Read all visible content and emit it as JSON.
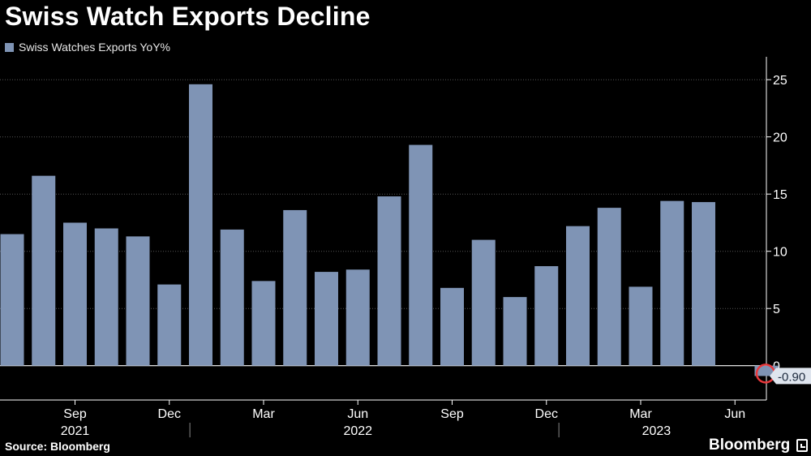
{
  "chart_data": {
    "type": "bar",
    "title": "Swiss Watch Exports Decline",
    "legend": [
      "Swiss Watches Exports YoY%"
    ],
    "categories": [
      "Jul 2021",
      "Aug 2021",
      "Sep 2021",
      "Oct 2021",
      "Nov 2021",
      "Dec 2021",
      "Jan 2022",
      "Feb 2022",
      "Mar 2022",
      "Apr 2022",
      "May 2022",
      "Jun 2022",
      "Jul 2022",
      "Aug 2022",
      "Sep 2022",
      "Oct 2022",
      "Nov 2022",
      "Dec 2022",
      "Jan 2023",
      "Feb 2023",
      "Mar 2023",
      "Apr 2023",
      "May 2023",
      "Jun 2023",
      "Jul 2023"
    ],
    "series": [
      {
        "name": "Swiss Watches Exports YoY%",
        "values": [
          11.5,
          16.6,
          12.5,
          12.0,
          11.3,
          7.1,
          24.6,
          11.9,
          7.4,
          13.6,
          8.2,
          8.4,
          14.8,
          19.3,
          6.8,
          11.0,
          6.0,
          8.7,
          12.2,
          13.8,
          6.9,
          14.4,
          14.3,
          0,
          -0.9
        ],
        "color": "#7f94b5"
      }
    ],
    "ylim": [
      -3,
      27
    ],
    "yticks": [
      0,
      5,
      10,
      15,
      20,
      25
    ],
    "xticks": [
      {
        "label": "Sep",
        "index": 2
      },
      {
        "label": "Dec",
        "index": 5
      },
      {
        "label": "Mar",
        "index": 8
      },
      {
        "label": "Jun",
        "index": 11
      },
      {
        "label": "Sep",
        "index": 14
      },
      {
        "label": "Dec",
        "index": 17
      },
      {
        "label": "Mar",
        "index": 20
      },
      {
        "label": "Jun",
        "index": 23
      }
    ],
    "years": [
      {
        "label": "2021",
        "index": 2
      },
      {
        "label": "2022",
        "index": 11
      },
      {
        "label": "2023",
        "index": 20.5
      }
    ],
    "last_value_label": "-0.90",
    "highlight_index": 24,
    "xlabel": "",
    "ylabel": ""
  },
  "footer": {
    "source": "Source: Bloomberg",
    "brand": "Bloomberg"
  },
  "colors": {
    "bar": "#7f94b5",
    "highlight": "#e8383b",
    "background": "#000000"
  }
}
